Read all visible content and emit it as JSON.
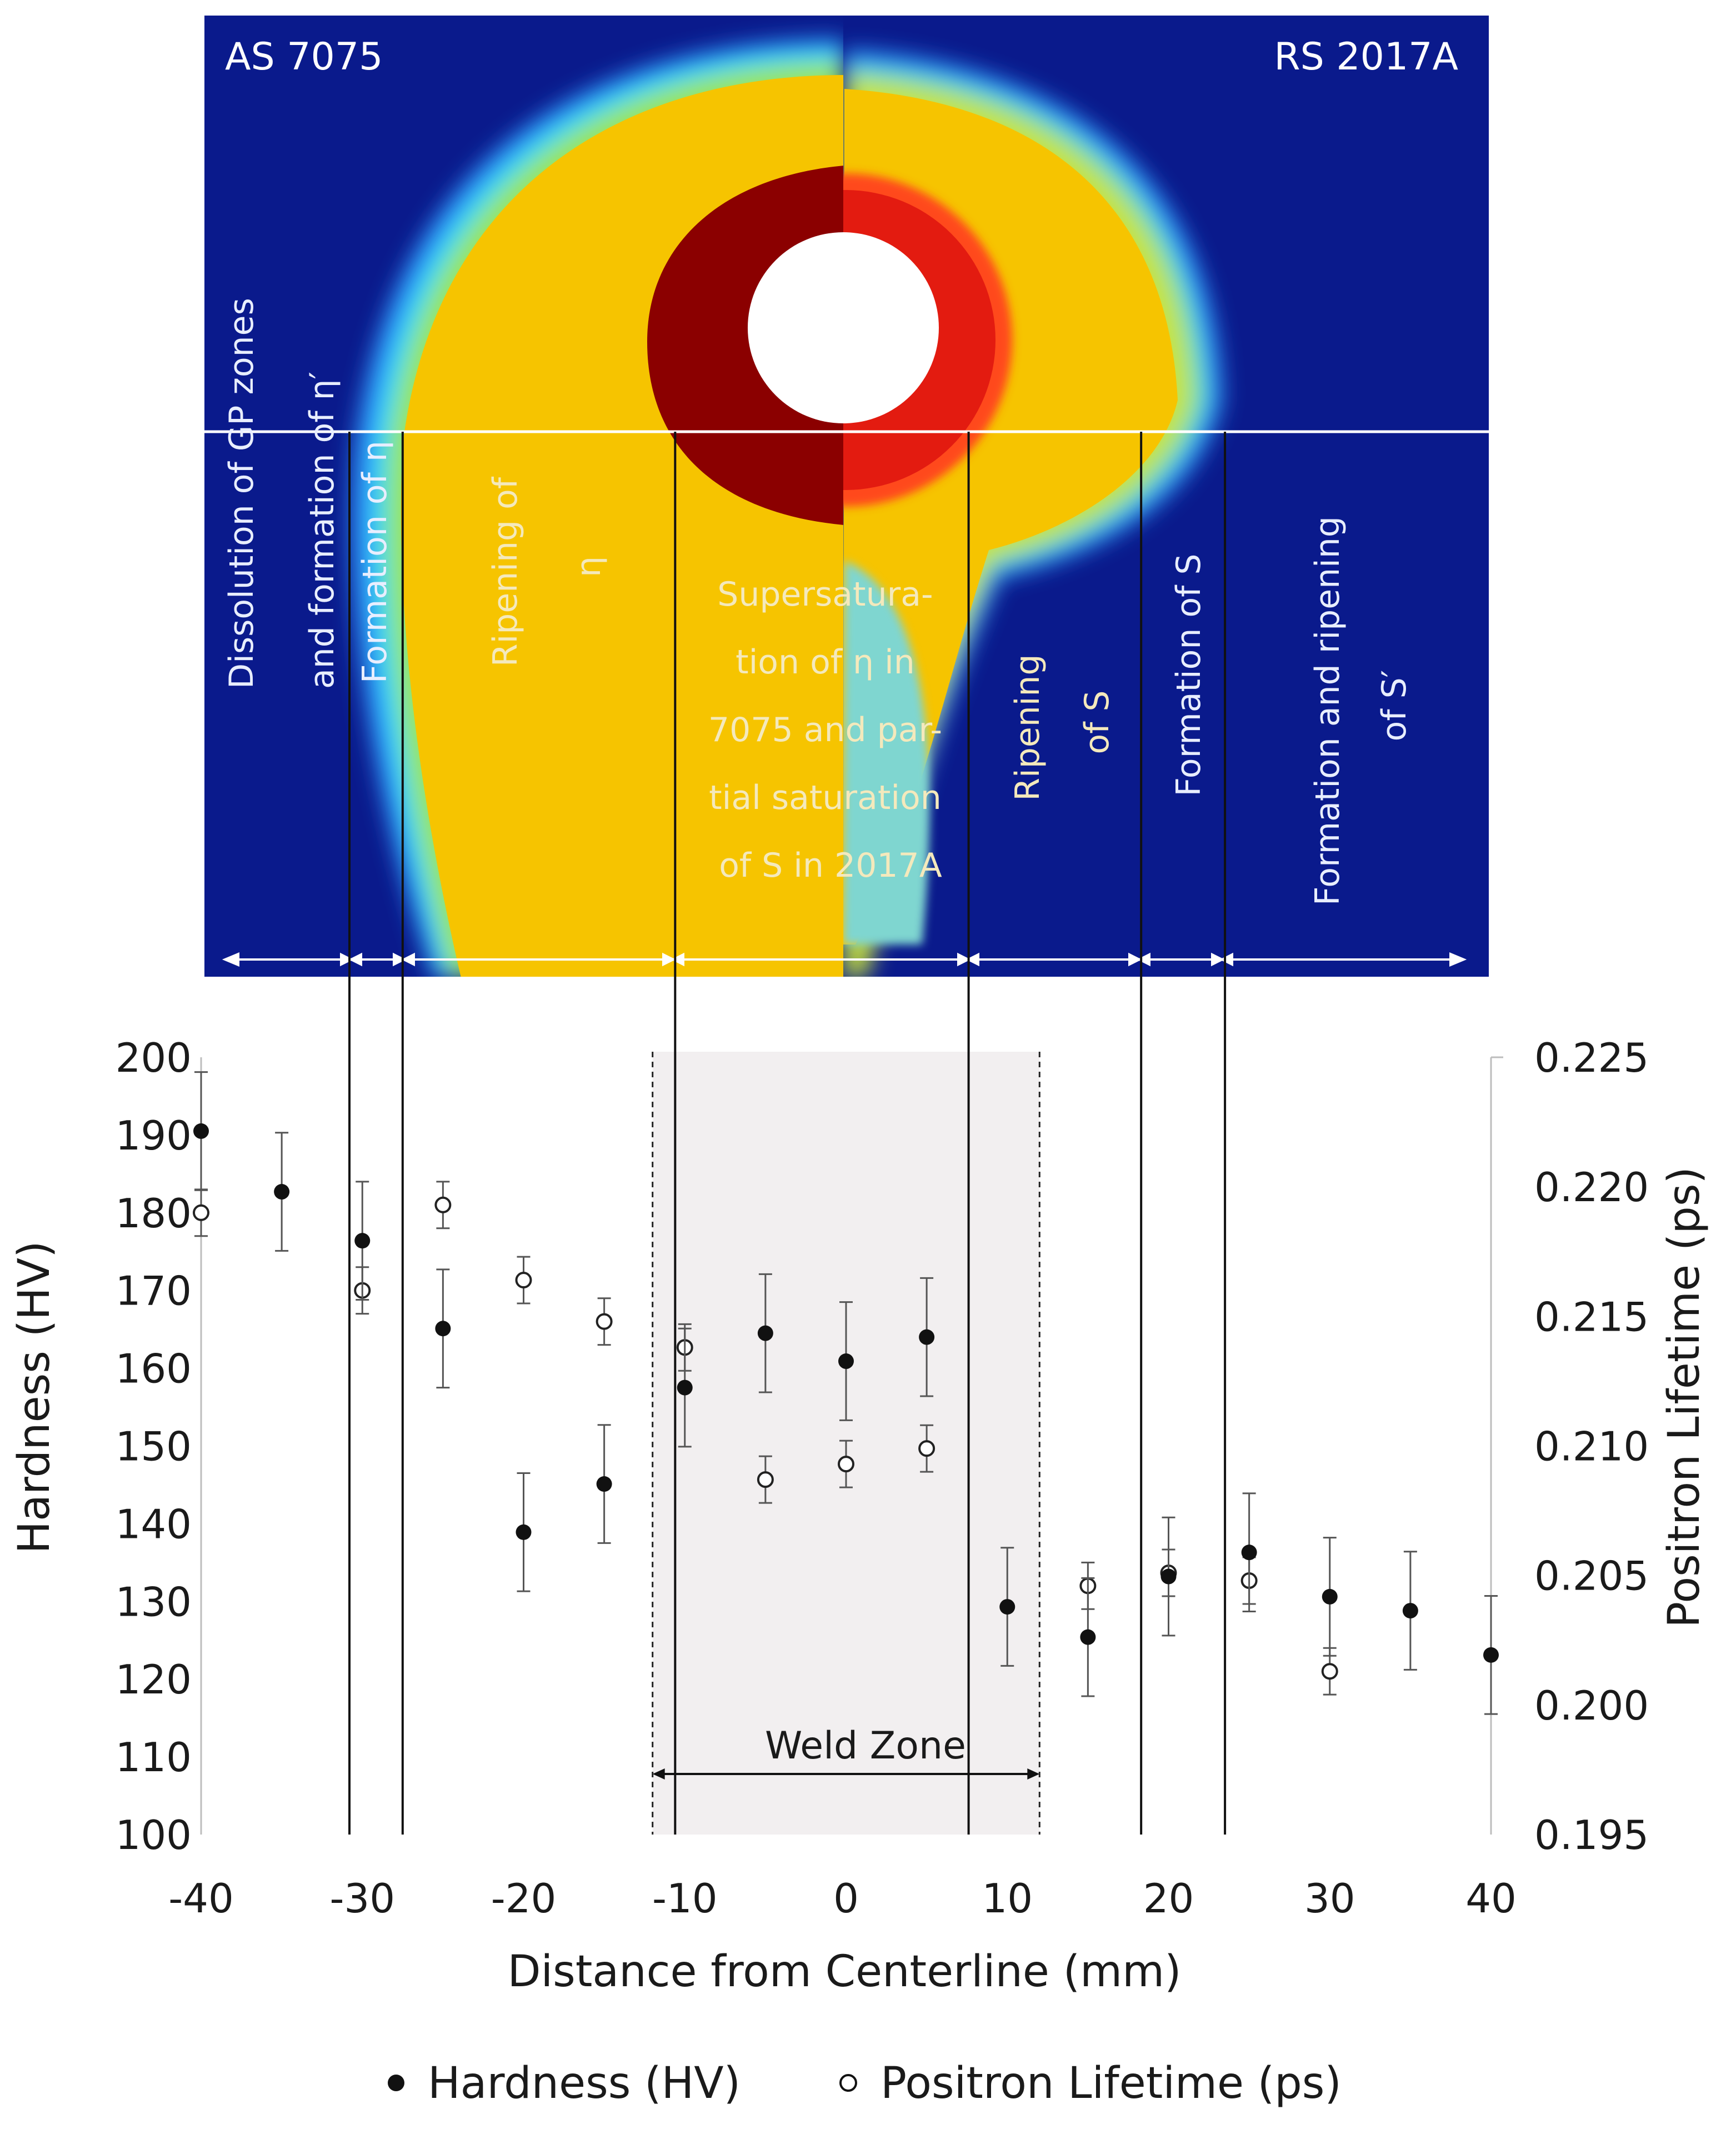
{
  "map": {
    "left_label": "AS 7075",
    "right_label": "RS 2017A",
    "colors": {
      "background": "#0a1a8c",
      "yellow": "#f6c400",
      "dark_red": "#8b0000",
      "red": "#e31b10",
      "hole": "#ffffff"
    },
    "zones": [
      {
        "id": "z1",
        "lines": [
          "Dissolution of GP zones",
          "and formation of η′"
        ]
      },
      {
        "id": "z2",
        "lines": [
          "Formation of η"
        ]
      },
      {
        "id": "z3",
        "lines": [
          "Ripening of",
          "η"
        ]
      },
      {
        "id": "z4",
        "lines": [
          "Supersatura-",
          "tion of η in",
          "7075 and par-",
          "tial saturation",
          "of S in 2017A"
        ]
      },
      {
        "id": "z5",
        "lines": [
          "Ripening",
          "of S"
        ]
      },
      {
        "id": "z6",
        "lines": [
          "Formation of S"
        ]
      },
      {
        "id": "z7",
        "lines": [
          "Formation and ripening",
          "of S′"
        ]
      }
    ]
  },
  "chart_data": {
    "type": "scatter",
    "xlabel": "Distance from Centerline (mm)",
    "ylabel": "Hardness (HV)",
    "y2label": "Positron Lifetime (ps)",
    "xlim": [
      -40,
      40
    ],
    "ylim": [
      100,
      200
    ],
    "y2lim": [
      0.195,
      0.225
    ],
    "xticks": [
      "-40",
      "-30",
      "-20",
      "-10",
      "0",
      "10",
      "20",
      "30",
      "40"
    ],
    "yticks": [
      "100",
      "110",
      "120",
      "130",
      "140",
      "150",
      "160",
      "170",
      "180",
      "190",
      "200"
    ],
    "y2ticks": [
      "0.195",
      "0.200",
      "0.205",
      "0.210",
      "0.215",
      "0.220",
      "0.225"
    ],
    "zone_boundaries_mm": [
      -30.8,
      -27.5,
      -10.6,
      7.6,
      18.3,
      23.5
    ],
    "weld_zone": {
      "label": "Weld Zone",
      "from": -12,
      "to": 12
    },
    "series": [
      {
        "name": "Hardness (HV)",
        "axis": "left",
        "marker": "filled",
        "x": [
          -40,
          -35,
          -30,
          -25,
          -20,
          -15,
          -10,
          -5,
          0,
          5,
          10,
          15,
          20,
          25,
          30,
          35,
          40
        ],
        "y": [
          190.5,
          182.7,
          176.4,
          165.1,
          138.9,
          145.1,
          157.5,
          164.5,
          160.9,
          164.0,
          129.3,
          125.4,
          133.2,
          136.3,
          130.6,
          128.8,
          123.1
        ],
        "err": [
          7.6,
          7.6,
          7.6,
          7.6,
          7.6,
          7.6,
          7.6,
          7.6,
          7.6,
          7.6,
          7.6,
          7.6,
          7.6,
          7.6,
          7.6,
          7.6,
          7.6
        ]
      },
      {
        "name": "Positron Lifetime (ps)",
        "axis": "right",
        "marker": "open",
        "x": [
          -40,
          -30,
          -25,
          -20,
          -15,
          -10,
          -5,
          0,
          5,
          15,
          20,
          25,
          30
        ],
        "y": [
          0.219,
          0.216,
          0.2193,
          0.2164,
          0.2148,
          0.2138,
          0.2087,
          0.2093,
          0.2099,
          0.2046,
          0.2051,
          0.2048,
          0.2013
        ],
        "err": [
          0.0009,
          0.0009,
          0.0009,
          0.0009,
          0.0009,
          0.0009,
          0.0009,
          0.0009,
          0.0009,
          0.0009,
          0.0009,
          0.0009,
          0.0009
        ]
      }
    ]
  }
}
